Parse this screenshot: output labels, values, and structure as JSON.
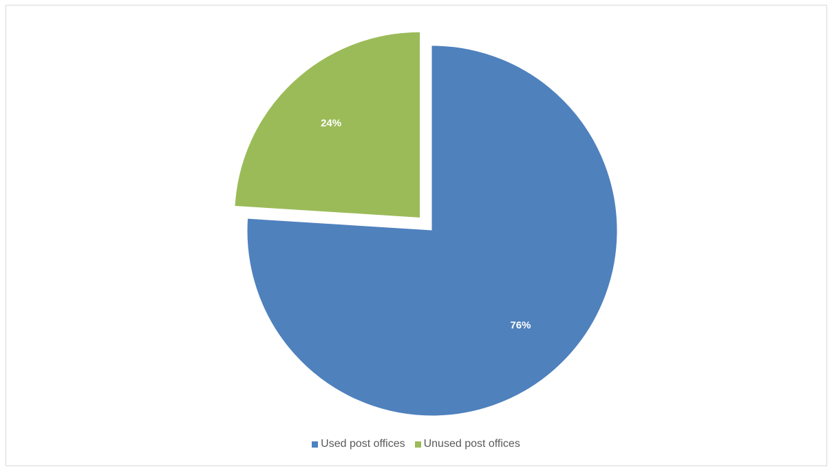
{
  "chart_data": {
    "type": "pie",
    "title": "",
    "series": [
      {
        "name": "Used post offices",
        "value": 76,
        "label": "76%",
        "color": "#4f81bd"
      },
      {
        "name": "Unused post offices",
        "value": 24,
        "label": "24%",
        "color": "#9bbb59",
        "exploded": true
      }
    ],
    "legend_position": "bottom"
  }
}
